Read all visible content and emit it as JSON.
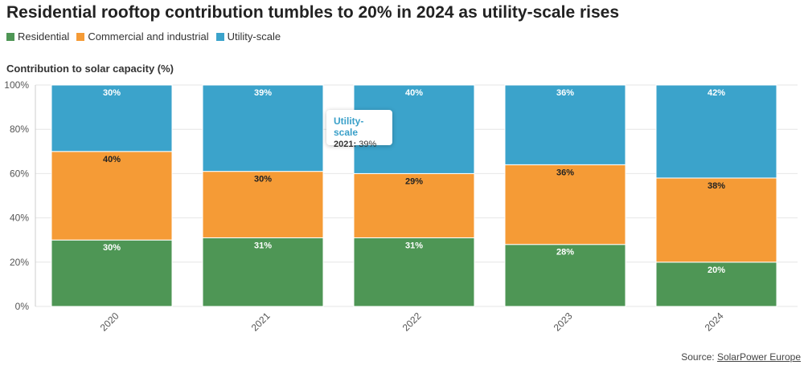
{
  "title": "Residential rooftop contribution tumbles to 20% in 2024 as utility-scale rises",
  "legend": [
    {
      "label": "Residential",
      "color": "#4e9655"
    },
    {
      "label": "Commercial and industrial",
      "color": "#f59b36"
    },
    {
      "label": "Utility-scale",
      "color": "#3ba3cb"
    }
  ],
  "subtitle": "Contribution to solar capacity (%)",
  "tooltip": {
    "series": "Utility-scale",
    "year": "2021:",
    "value": "39%"
  },
  "source": {
    "prefix": "Source: ",
    "link": "SolarPower Europe"
  },
  "chart_data": {
    "type": "bar",
    "stacked": true,
    "categories": [
      "2020",
      "2021",
      "2022",
      "2023",
      "2024"
    ],
    "ylim": [
      0,
      100
    ],
    "yticks": [
      "0%",
      "20%",
      "40%",
      "60%",
      "80%",
      "100%"
    ],
    "series": [
      {
        "name": "Residential",
        "color": "#4e9655",
        "values": [
          30,
          31,
          31,
          28,
          20
        ],
        "label_color": "#ffffff"
      },
      {
        "name": "Commercial and industrial",
        "color": "#f59b36",
        "values": [
          40,
          30,
          29,
          36,
          38
        ],
        "label_color": "#222222"
      },
      {
        "name": "Utility-scale",
        "color": "#3ba3cb",
        "values": [
          30,
          39,
          40,
          36,
          42
        ],
        "label_color": "#ffffff"
      }
    ]
  }
}
